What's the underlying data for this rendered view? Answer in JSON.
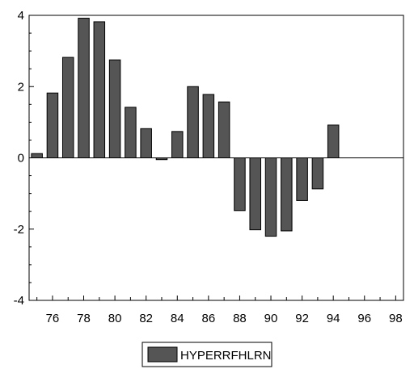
{
  "chart_data": {
    "type": "bar",
    "x": [
      "75",
      "76",
      "77",
      "78",
      "79",
      "80",
      "81",
      "82",
      "83",
      "84",
      "85",
      "86",
      "87",
      "88",
      "89",
      "90",
      "91",
      "92",
      "93",
      "94"
    ],
    "series": [
      {
        "name": "HYPERRFHLRN",
        "values": [
          0.12,
          1.82,
          2.82,
          3.92,
          3.82,
          2.75,
          1.42,
          0.82,
          -0.05,
          0.74,
          2.0,
          1.78,
          1.57,
          -1.48,
          -2.02,
          -2.2,
          -2.05,
          -1.2,
          -0.87,
          0.92
        ],
        "color": "#555555"
      }
    ],
    "x_ticks": [
      "76",
      "78",
      "80",
      "82",
      "84",
      "86",
      "88",
      "90",
      "92",
      "94",
      "96",
      "98"
    ],
    "y_ticks": [
      "4",
      "2",
      "0",
      "-2",
      "-4"
    ],
    "x_range": [
      "74.5",
      "98.5"
    ],
    "ylim": [
      -4,
      4
    ],
    "grid": false,
    "legend": {
      "position": "bottom-center",
      "label": "HYPERRFHLRN"
    },
    "zero_line": true
  }
}
